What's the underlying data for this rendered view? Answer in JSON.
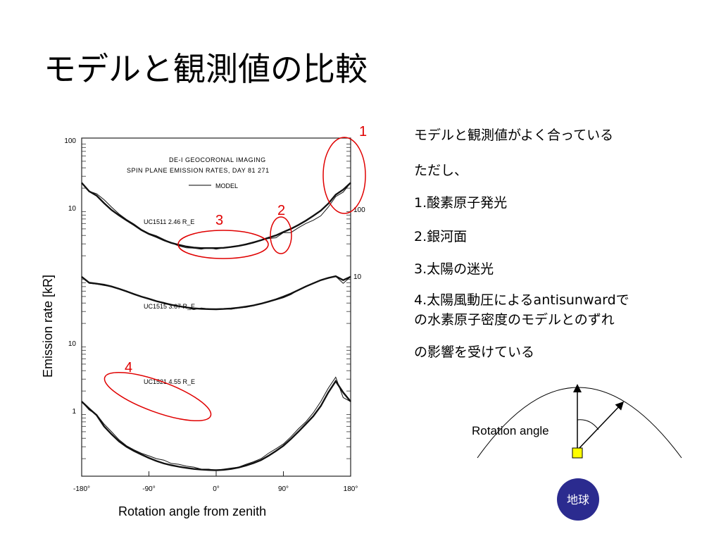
{
  "slide": {
    "title": "モデルと観測値の比較",
    "notes": [
      "モデルと観測値がよく合っている",
      "ただし、",
      "1.酸素原子発光",
      "2.銀河面",
      "3.太陽の迷光",
      "4.太陽風動圧によるantisunwardで",
      "の水素原子密度のモデルとのずれ",
      "の影響を受けている"
    ]
  },
  "chart_data": {
    "type": "line",
    "title": "DE-I GEOCORONAL IMAGING",
    "subtitle": "SPIN PLANE EMISSION RATES, DAY 81 271",
    "legend": "MODEL",
    "xlabel": "Rotation angle from zenith",
    "ylabel": "Emission rate   [kR]",
    "x_ticks": [
      "-180°",
      "-90°",
      "0°",
      "90°",
      "180°"
    ],
    "left_ticks": [
      "100",
      "10",
      "10",
      "1"
    ],
    "right_ticks": [
      "100",
      "10"
    ],
    "xlim": [
      -180,
      180
    ],
    "x": [
      -180,
      -170,
      -160,
      -150,
      -140,
      -130,
      -120,
      -110,
      -100,
      -90,
      -80,
      -70,
      -60,
      -50,
      -40,
      -30,
      -20,
      -10,
      0,
      10,
      20,
      30,
      40,
      50,
      60,
      70,
      80,
      90,
      100,
      110,
      120,
      130,
      140,
      150,
      160,
      170,
      180
    ],
    "series": [
      {
        "name": "UC1511  2.46 R_E",
        "observed": [
          24,
          18,
          16.5,
          13.5,
          10.5,
          8.3,
          6.9,
          5.9,
          4.9,
          4.3,
          3.95,
          3.5,
          3.1,
          2.8,
          2.62,
          2.6,
          2.5,
          2.62,
          2.5,
          2.62,
          2.7,
          2.8,
          3.0,
          3.2,
          3.4,
          3.6,
          3.7,
          4.4,
          4.4,
          5.2,
          6.0,
          6.7,
          7.8,
          10.5,
          15,
          17.5,
          24
        ],
        "model": [
          24,
          18,
          15.5,
          12,
          9.5,
          7.9,
          6.7,
          5.7,
          4.8,
          4.2,
          3.8,
          3.4,
          3.1,
          2.9,
          2.74,
          2.64,
          2.6,
          2.6,
          2.6,
          2.62,
          2.7,
          2.8,
          2.95,
          3.15,
          3.4,
          3.7,
          4.0,
          4.5,
          5.0,
          5.7,
          6.6,
          7.8,
          9.3,
          11.8,
          16,
          19,
          24
        ]
      },
      {
        "name": "UC1515  3.67 R_E",
        "observed": [
          5.5,
          4.4,
          4.3,
          4.1,
          3.95,
          3.7,
          3.4,
          3.0,
          2.8,
          2.6,
          2.4,
          2.3,
          2.1,
          2.05,
          1.92,
          1.8,
          1.9,
          1.85,
          1.8,
          1.85,
          1.82,
          1.9,
          1.95,
          2.05,
          2.2,
          2.35,
          2.5,
          2.7,
          3.0,
          3.5,
          3.9,
          4.4,
          4.9,
          5.2,
          5.6,
          4.4,
          5.5
        ],
        "model": [
          5.5,
          4.5,
          4.35,
          4.2,
          3.95,
          3.65,
          3.35,
          3.05,
          2.8,
          2.6,
          2.4,
          2.25,
          2.12,
          2.02,
          1.94,
          1.88,
          1.85,
          1.83,
          1.82,
          1.84,
          1.87,
          1.92,
          1.99,
          2.08,
          2.2,
          2.36,
          2.55,
          2.8,
          3.1,
          3.5,
          3.95,
          4.4,
          4.9,
          5.3,
          5.6,
          4.9,
          5.5
        ]
      },
      {
        "name": "UC1521  4.55 R_E",
        "observed": [
          1.4,
          1.05,
          0.9,
          0.65,
          0.5,
          0.38,
          0.31,
          0.27,
          0.24,
          0.22,
          0.2,
          0.19,
          0.17,
          0.165,
          0.155,
          0.15,
          0.14,
          0.14,
          0.135,
          0.14,
          0.145,
          0.15,
          0.165,
          0.18,
          0.2,
          0.24,
          0.28,
          0.33,
          0.42,
          0.55,
          0.7,
          0.95,
          1.4,
          2.2,
          3.2,
          1.6,
          1.4
        ],
        "model": [
          1.4,
          1.1,
          0.88,
          0.6,
          0.46,
          0.36,
          0.3,
          0.26,
          0.23,
          0.205,
          0.185,
          0.17,
          0.16,
          0.152,
          0.146,
          0.141,
          0.138,
          0.136,
          0.135,
          0.137,
          0.141,
          0.148,
          0.158,
          0.172,
          0.19,
          0.22,
          0.26,
          0.31,
          0.39,
          0.5,
          0.65,
          0.85,
          1.2,
          1.9,
          2.8,
          1.9,
          1.4
        ]
      }
    ],
    "annotations": [
      {
        "label": "1",
        "color": "#e00000"
      },
      {
        "label": "2",
        "color": "#e00000"
      },
      {
        "label": "3",
        "color": "#e00000"
      },
      {
        "label": "4",
        "color": "#e00000"
      }
    ]
  },
  "diagram": {
    "label": "Rotation angle",
    "earth_label": "地球",
    "earth_color": "#2b2b8f",
    "satellite_color": "#ffff00"
  }
}
